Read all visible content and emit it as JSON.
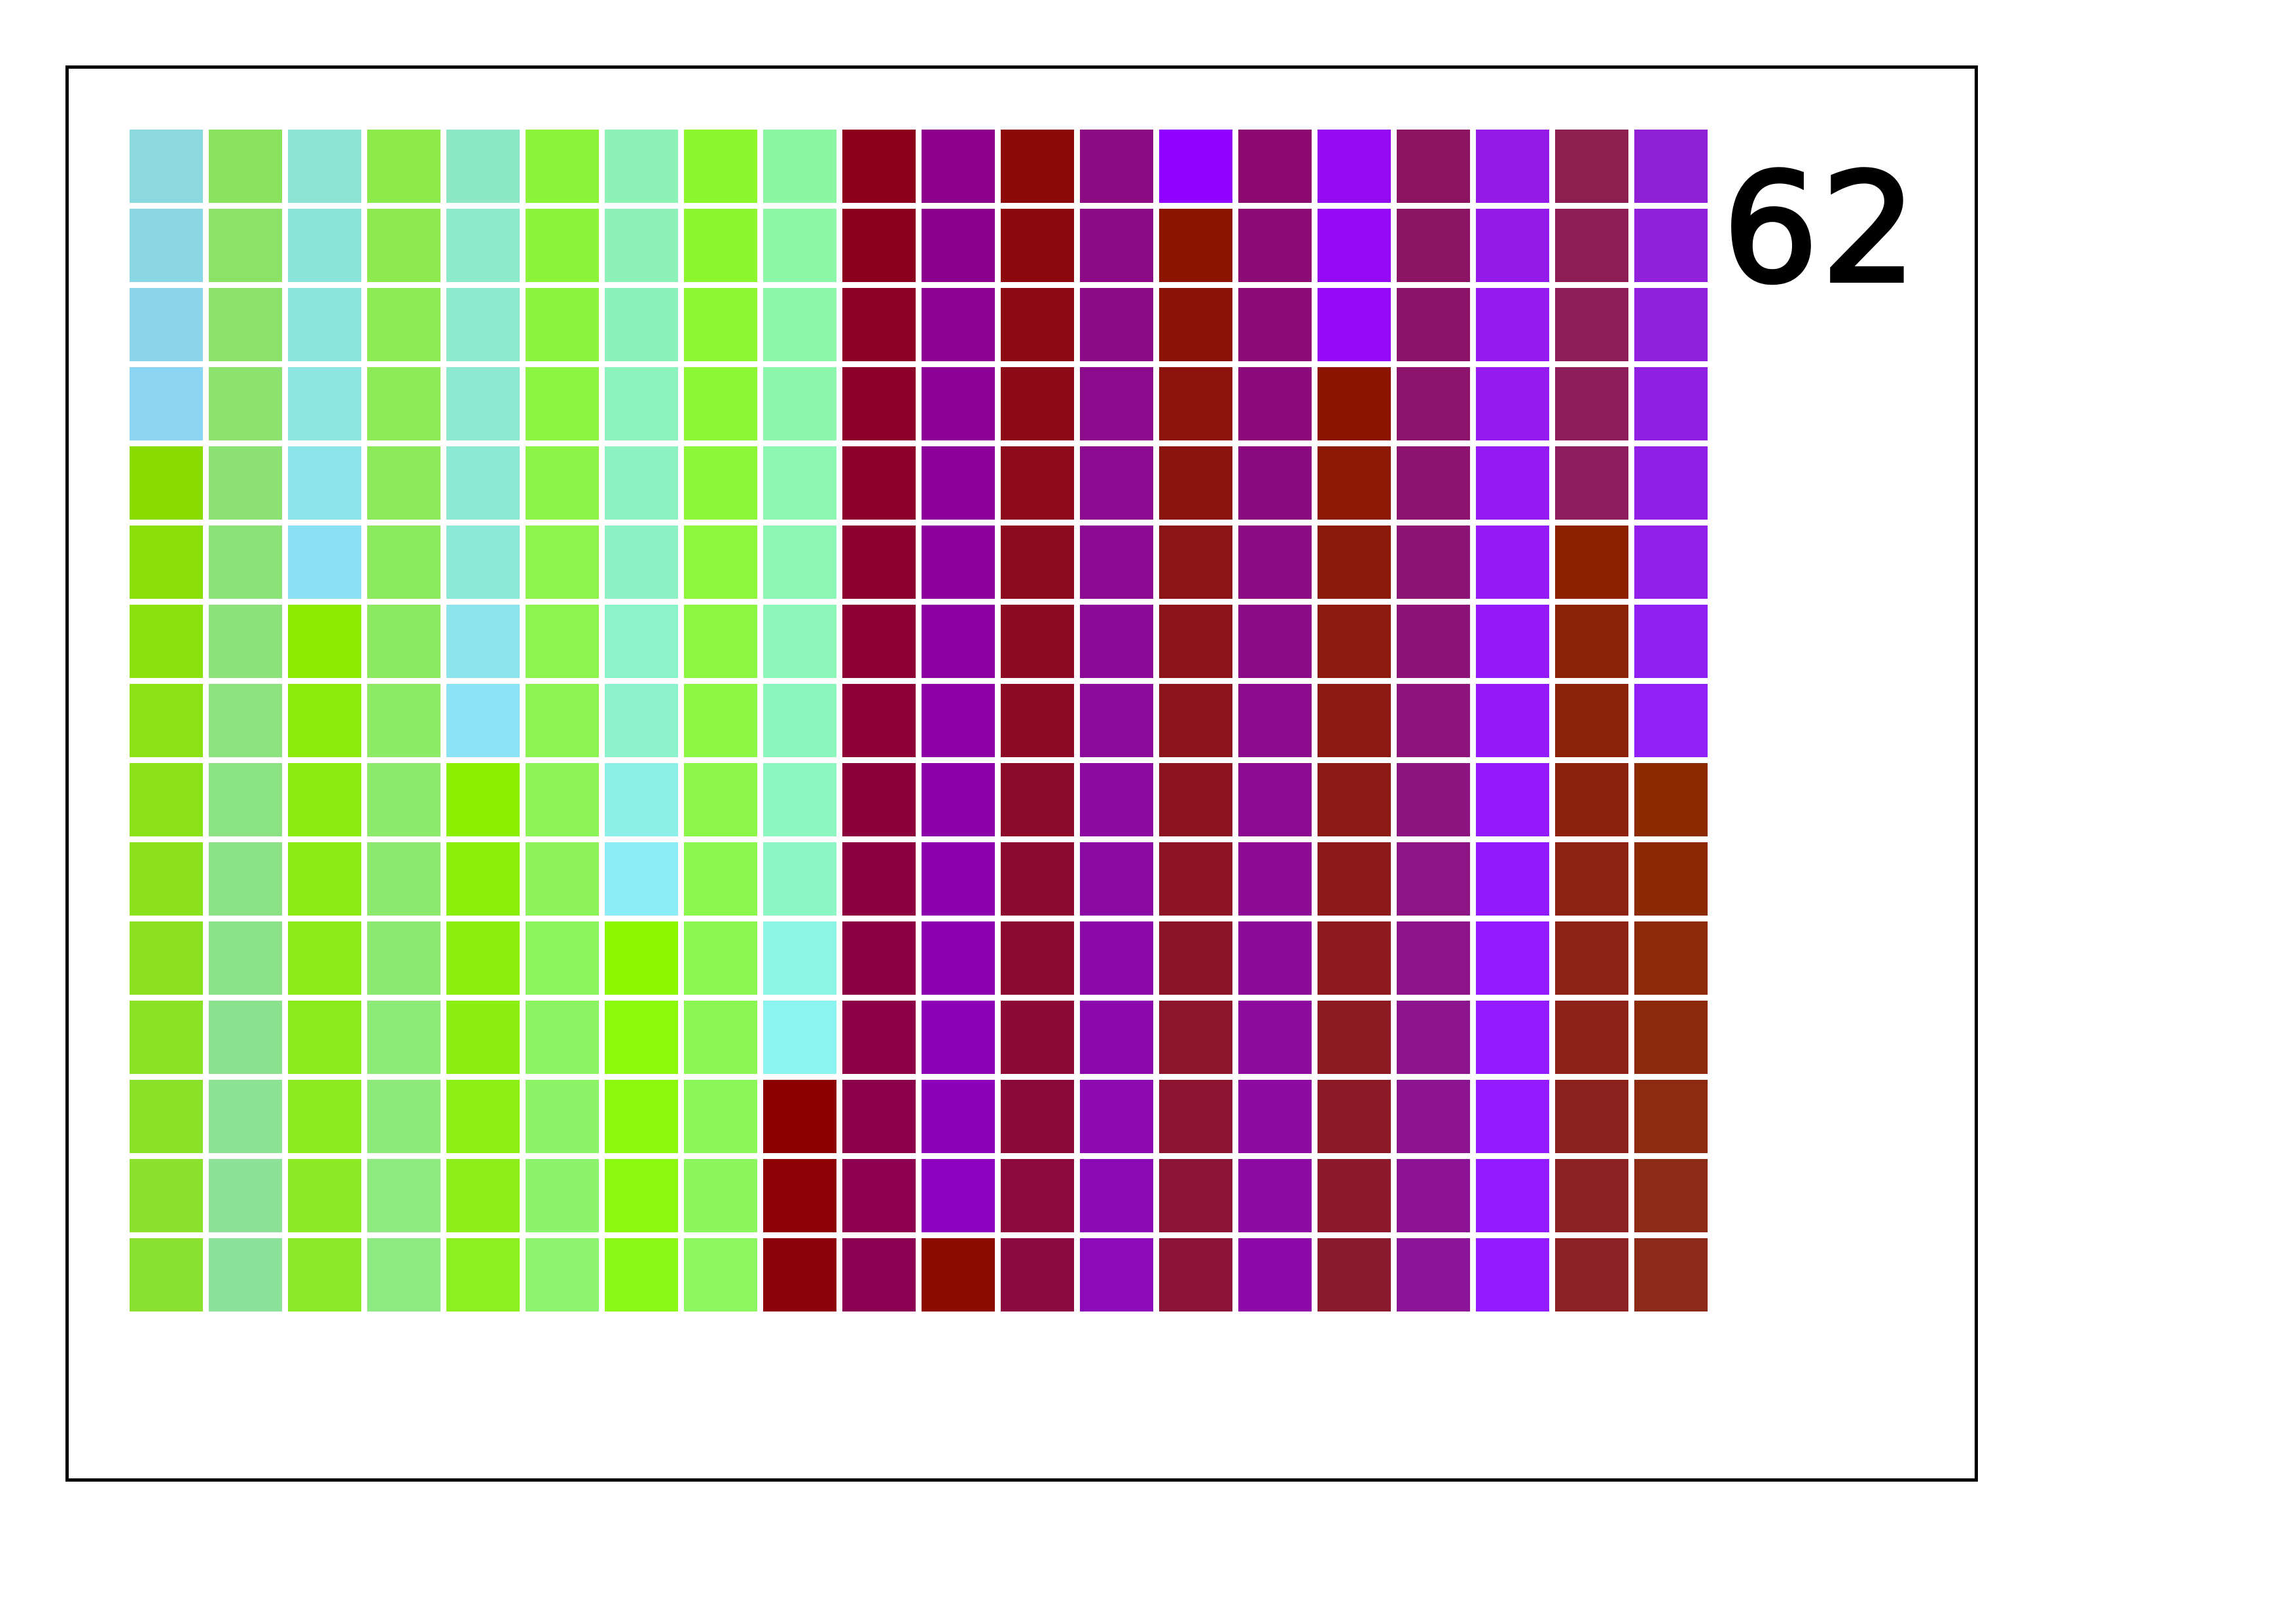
{
  "counter": "62",
  "grid": {
    "rows": 15,
    "cols": 20,
    "colors": [
      [
        "#8bd9df",
        "#8be25f",
        "#8ce2d3",
        "#8cea4b",
        "#8ce8c4",
        "#8cf438",
        "#8cf2b5",
        "#8cf72d",
        "#8cf7a3",
        "#8c001b",
        "#8c008c",
        "#8c0a0a",
        "#8c0a82",
        "#9000ff",
        "#8c0a70",
        "#940af0",
        "#8c1460",
        "#941ae8",
        "#8c1e50",
        "#9020d6"
      ],
      [
        "#8bd6e4",
        "#8be266",
        "#8ce3d8",
        "#8cea4e",
        "#8ce9c9",
        "#8cf43b",
        "#8cf2b8",
        "#8cf72f",
        "#8cf7a6",
        "#8c001f",
        "#8c008f",
        "#8c0a0e",
        "#8c0a85",
        "#8c1400",
        "#8c0a74",
        "#940af4",
        "#8c1464",
        "#941aea",
        "#8c1e54",
        "#9020da"
      ],
      [
        "#8bd4e9",
        "#8be26a",
        "#8ce4dc",
        "#8cea52",
        "#8ce9cc",
        "#8cf43e",
        "#8cf2bb",
        "#8cf732",
        "#8cf7a9",
        "#8c0023",
        "#8c0092",
        "#8c0a12",
        "#8c0a88",
        "#8c1406",
        "#8c0a78",
        "#940af8",
        "#8c1468",
        "#941aed",
        "#8c1e58",
        "#9020de"
      ],
      [
        "#8bd4f2",
        "#8be26e",
        "#8ce5e1",
        "#8cea56",
        "#8ce9d0",
        "#8cf442",
        "#8cf2be",
        "#8cf735",
        "#8cf7ac",
        "#8c0027",
        "#8c0096",
        "#8c0a16",
        "#8c0a8c",
        "#8c140c",
        "#8c0a7c",
        "#8c1400",
        "#8c146c",
        "#941af0",
        "#8c1e5c",
        "#9020e2"
      ],
      [
        "#8bdc00",
        "#8be272",
        "#8ce4e9",
        "#8cea5a",
        "#8ce9d4",
        "#8cf446",
        "#8cf2c1",
        "#8cf738",
        "#8cf7b0",
        "#8c002b",
        "#8c009a",
        "#8c0a1a",
        "#8c0a90",
        "#8c1410",
        "#8c0a80",
        "#8c1a06",
        "#8c1470",
        "#941af4",
        "#8c1e60",
        "#9020e6"
      ],
      [
        "#8bdf08",
        "#8be276",
        "#8ce0f4",
        "#8cea5e",
        "#8ce9d8",
        "#8cf44a",
        "#8cf2c4",
        "#8cf73c",
        "#8cf7b4",
        "#8c002f",
        "#8c009e",
        "#8c0a1e",
        "#8c0a94",
        "#8c1414",
        "#8c0a84",
        "#8c1a0a",
        "#8c1474",
        "#941af6",
        "#8c2200",
        "#9020ea"
      ],
      [
        "#8be10e",
        "#8be27a",
        "#8ceb00",
        "#8cea62",
        "#8ce3ec",
        "#8cf44e",
        "#8cf2c8",
        "#8cf740",
        "#8cf7b8",
        "#8c0033",
        "#8c00a2",
        "#8c0a22",
        "#8c0a98",
        "#8c1418",
        "#8c0a88",
        "#8c1a0e",
        "#8c1478",
        "#941af8",
        "#8c2206",
        "#9020f2"
      ],
      [
        "#8be114",
        "#8be27e",
        "#8ceb0a",
        "#8cea66",
        "#8ce3f6",
        "#8cf452",
        "#8cf2cc",
        "#8cf744",
        "#8cf7bc",
        "#8c0037",
        "#8c00a6",
        "#8c0a26",
        "#8c0a9c",
        "#8c141c",
        "#8c0a8c",
        "#8c1a12",
        "#8c147c",
        "#941afa",
        "#8c220a",
        "#9020f6"
      ],
      [
        "#8be118",
        "#8be282",
        "#8ceb10",
        "#8cea6a",
        "#8cef00",
        "#8cf456",
        "#8cefe8",
        "#8cf748",
        "#8cf7c0",
        "#8c003b",
        "#8c00aa",
        "#8c0a2a",
        "#8c0aa0",
        "#8c1420",
        "#8c0a90",
        "#8c1a16",
        "#8c1480",
        "#941afc",
        "#8c220e",
        "#8c2a00"
      ],
      [
        "#8be11c",
        "#8be286",
        "#8ceb14",
        "#8cea6e",
        "#8cef0a",
        "#8cf45a",
        "#8cedf6",
        "#8cf74c",
        "#8cf7c4",
        "#8c003f",
        "#8c00ae",
        "#8c0a2e",
        "#8c0aa4",
        "#8c1424",
        "#8c0a94",
        "#8c1a1a",
        "#8c1484",
        "#941afe",
        "#8c2212",
        "#8c2a06"
      ],
      [
        "#8be120",
        "#8be28a",
        "#8ceb18",
        "#8cea72",
        "#8cef0e",
        "#8cf45e",
        "#8cf800",
        "#8cf750",
        "#8cf5e4",
        "#8c0043",
        "#8c00b2",
        "#8c0a32",
        "#8c0aa8",
        "#8c1428",
        "#8c0a98",
        "#8c1a1e",
        "#8c1488",
        "#941aff",
        "#8c2216",
        "#8c2a0a"
      ],
      [
        "#8be124",
        "#8be28e",
        "#8ceb1c",
        "#8cea76",
        "#8cef12",
        "#8cf462",
        "#8cf80a",
        "#8cf754",
        "#8cf4f0",
        "#8c0047",
        "#8c00b6",
        "#8c0a36",
        "#8c0aac",
        "#8c142c",
        "#8c0a9c",
        "#8c1a22",
        "#8c148c",
        "#941aff",
        "#8c221a",
        "#8c2a0e"
      ],
      [
        "#8be128",
        "#8be292",
        "#8ceb20",
        "#8cea7a",
        "#8cef16",
        "#8cf466",
        "#8cf80e",
        "#8cf758",
        "#8c0000",
        "#8c004b",
        "#8c00ba",
        "#8c0a3a",
        "#8c0ab0",
        "#8c1430",
        "#8c0aa0",
        "#8c1a26",
        "#8c1490",
        "#941aff",
        "#8c221e",
        "#8c2a12"
      ],
      [
        "#8be12c",
        "#8be296",
        "#8ceb24",
        "#8cea7e",
        "#8cef1a",
        "#8cf46a",
        "#8cf812",
        "#8cf75c",
        "#8c0006",
        "#8c004f",
        "#8c00be",
        "#8c0a3e",
        "#8c0ab4",
        "#8c1434",
        "#8c0aa4",
        "#8c1a2a",
        "#8c1494",
        "#941aff",
        "#8c2222",
        "#8c2a16"
      ],
      [
        "#8be130",
        "#8be29a",
        "#8ceb28",
        "#8cea82",
        "#8cef1e",
        "#8cf46e",
        "#8cf816",
        "#8cf760",
        "#8c000a",
        "#8c0053",
        "#8c0c00",
        "#8c0a42",
        "#8c0ab8",
        "#8c1438",
        "#8c0aa8",
        "#8c1a2e",
        "#8c1498",
        "#941aff",
        "#8c2226",
        "#8c2a1a"
      ]
    ]
  }
}
